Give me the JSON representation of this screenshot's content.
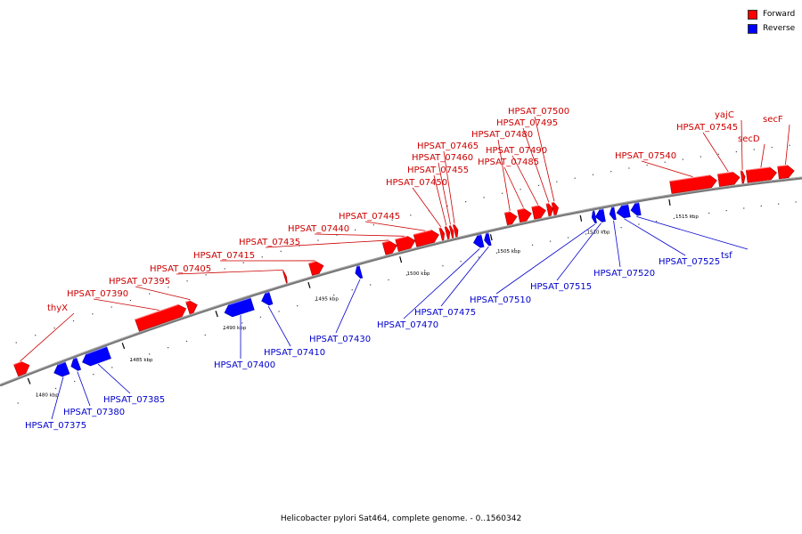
{
  "caption": "Helicobacter pylori Sat464, complete genome. - 0..1560342",
  "legend": [
    {
      "label": "Forward",
      "color": "#ff0000"
    },
    {
      "label": "Reverse",
      "color": "#0000ff"
    }
  ],
  "colors": {
    "forward": "#ff0000",
    "forward_edge": "#aa0000",
    "forward_label": "#cc0000",
    "reverse": "#0000ff",
    "reverse_edge": "#0000aa",
    "reverse_label": "#0000cc",
    "backbone": "#777777",
    "ticks": "#000000"
  },
  "ticks": [
    {
      "position_kbp": 1480,
      "label": "1480 kbp"
    },
    {
      "position_kbp": 1485,
      "label": "1485 kbp"
    },
    {
      "position_kbp": 1490,
      "label": "1490 kbp"
    },
    {
      "position_kbp": 1495,
      "label": "1495 kbp"
    },
    {
      "position_kbp": 1500,
      "label": "1500 kbp"
    },
    {
      "position_kbp": 1505,
      "label": "1505 kbp"
    },
    {
      "position_kbp": 1510,
      "label": "1510 kbp"
    },
    {
      "position_kbp": 1515,
      "label": "1515 kbp"
    }
  ],
  "forward_genes": [
    {
      "name": "thyX",
      "start_kbp": 1479.6,
      "end_kbp": 1480.3
    },
    {
      "name": "HPSAT_07390",
      "start_kbp": 1486.0,
      "end_kbp": 1488.6
    },
    {
      "name": "HPSAT_07395",
      "start_kbp": 1488.7,
      "end_kbp": 1489.2
    },
    {
      "name": "HPSAT_07405",
      "start_kbp": 1493.9,
      "end_kbp": 1494.0
    },
    {
      "name": "HPSAT_07415",
      "start_kbp": 1495.3,
      "end_kbp": 1496.0
    },
    {
      "name": "HPSAT_07435",
      "start_kbp": 1499.3,
      "end_kbp": 1500.0
    },
    {
      "name": "HPSAT_07440",
      "start_kbp": 1500.0,
      "end_kbp": 1501.0
    },
    {
      "name": "HPSAT_07445",
      "start_kbp": 1501.0,
      "end_kbp": 1502.3
    },
    {
      "name": "HPSAT_07450",
      "start_kbp": 1502.4,
      "end_kbp": 1502.6
    },
    {
      "name": "HPSAT_07455",
      "start_kbp": 1502.7,
      "end_kbp": 1502.9
    },
    {
      "name": "HPSAT_07460",
      "start_kbp": 1502.95,
      "end_kbp": 1503.1
    },
    {
      "name": "HPSAT_07465",
      "start_kbp": 1503.15,
      "end_kbp": 1503.35
    },
    {
      "name": "HPSAT_07480",
      "start_kbp": 1506.0,
      "end_kbp": 1506.6
    },
    {
      "name": "HPSAT_07485",
      "start_kbp": 1506.7,
      "end_kbp": 1507.4
    },
    {
      "name": "HPSAT_07490",
      "start_kbp": 1507.5,
      "end_kbp": 1508.2
    },
    {
      "name": "HPSAT_07495",
      "start_kbp": 1508.3,
      "end_kbp": 1508.6
    },
    {
      "name": "HPSAT_07500",
      "start_kbp": 1508.6,
      "end_kbp": 1508.9
    },
    {
      "name": "HPSAT_07540",
      "start_kbp": 1515.2,
      "end_kbp": 1517.8
    },
    {
      "name": "HPSAT_07545",
      "start_kbp": 1517.9,
      "end_kbp": 1519.1
    },
    {
      "name": "yajC",
      "start_kbp": 1519.2,
      "end_kbp": 1519.4
    },
    {
      "name": "secD",
      "start_kbp": 1519.5,
      "end_kbp": 1521.2
    },
    {
      "name": "secF",
      "start_kbp": 1521.3,
      "end_kbp": 1522.2
    }
  ],
  "reverse_genes": [
    {
      "name": "HPSAT_07375",
      "start_kbp": 1481.3,
      "end_kbp": 1482.0
    },
    {
      "name": "HPSAT_07380",
      "start_kbp": 1482.2,
      "end_kbp": 1482.6
    },
    {
      "name": "HPSAT_07385",
      "start_kbp": 1482.8,
      "end_kbp": 1484.2
    },
    {
      "name": "HPSAT_07400",
      "start_kbp": 1490.4,
      "end_kbp": 1491.9
    },
    {
      "name": "HPSAT_07410",
      "start_kbp": 1492.4,
      "end_kbp": 1492.9
    },
    {
      "name": "HPSAT_07430",
      "start_kbp": 1497.5,
      "end_kbp": 1497.8
    },
    {
      "name": "HPSAT_07470",
      "start_kbp": 1504.0,
      "end_kbp": 1504.5
    },
    {
      "name": "HPSAT_07475",
      "start_kbp": 1504.6,
      "end_kbp": 1504.9
    },
    {
      "name": "HPSAT_07510",
      "start_kbp": 1510.6,
      "end_kbp": 1510.8
    },
    {
      "name": "HPSAT_07515",
      "start_kbp": 1510.8,
      "end_kbp": 1511.3
    },
    {
      "name": "HPSAT_07520",
      "start_kbp": 1511.6,
      "end_kbp": 1511.9
    },
    {
      "name": "HPSAT_07525",
      "start_kbp": 1512.0,
      "end_kbp": 1512.7
    },
    {
      "name": "tsf",
      "start_kbp": 1512.8,
      "end_kbp": 1513.3
    }
  ]
}
